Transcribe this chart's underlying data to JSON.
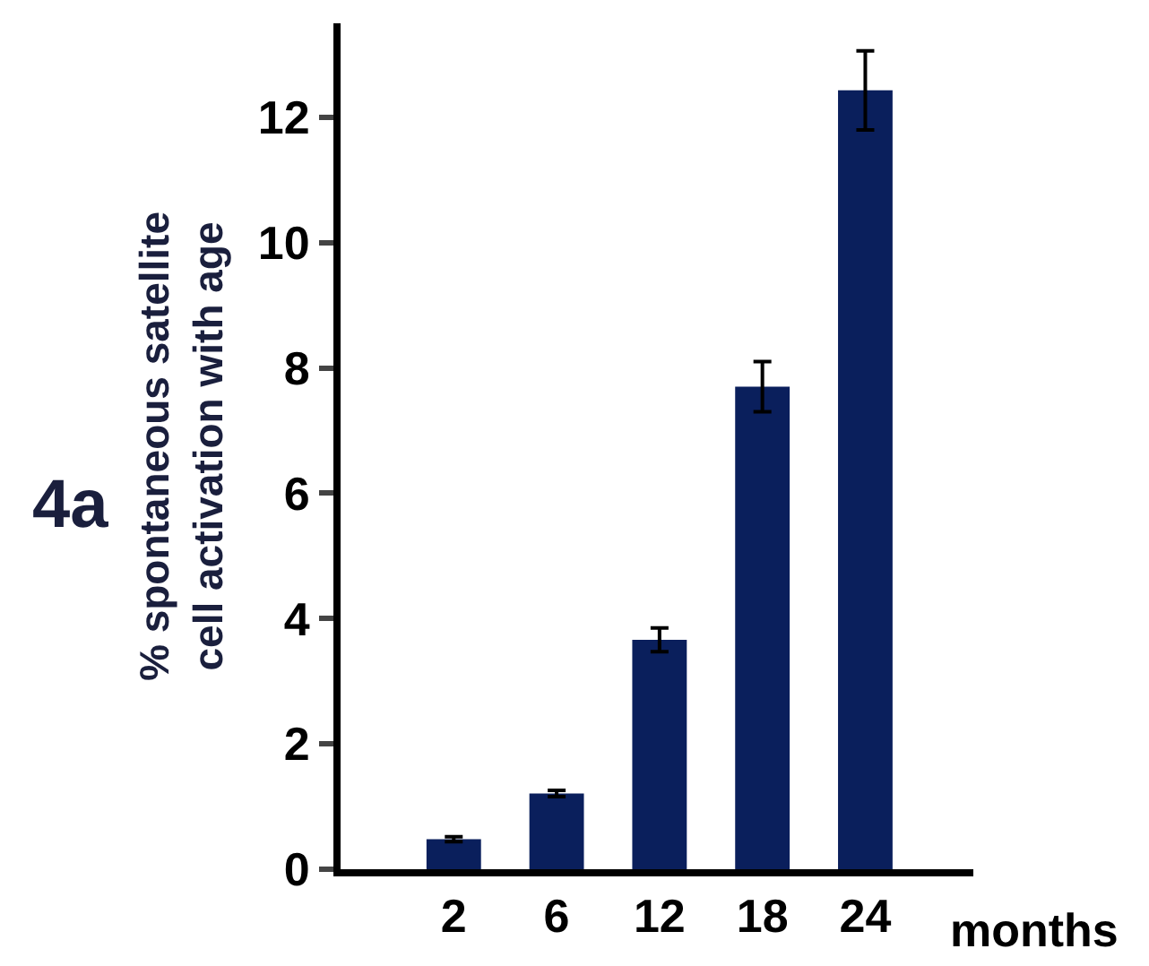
{
  "chart_data": {
    "type": "bar",
    "xlabel": "months",
    "ylabel": "% spontaneous satellite\ncell activation with age",
    "annotations": [
      "4a"
    ],
    "categories": [
      "2",
      "6",
      "12",
      "18",
      "24"
    ],
    "series": [
      {
        "color": "#0a1f5c",
        "values": [
          0.48,
          1.21,
          3.66,
          7.7,
          12.43
        ],
        "errors": [
          0.04,
          0.05,
          0.19,
          0.4,
          0.63
        ]
      }
    ],
    "ylim": [
      0,
      13.5
    ],
    "yticks": [
      0,
      2,
      4,
      6,
      8,
      10,
      12
    ]
  }
}
